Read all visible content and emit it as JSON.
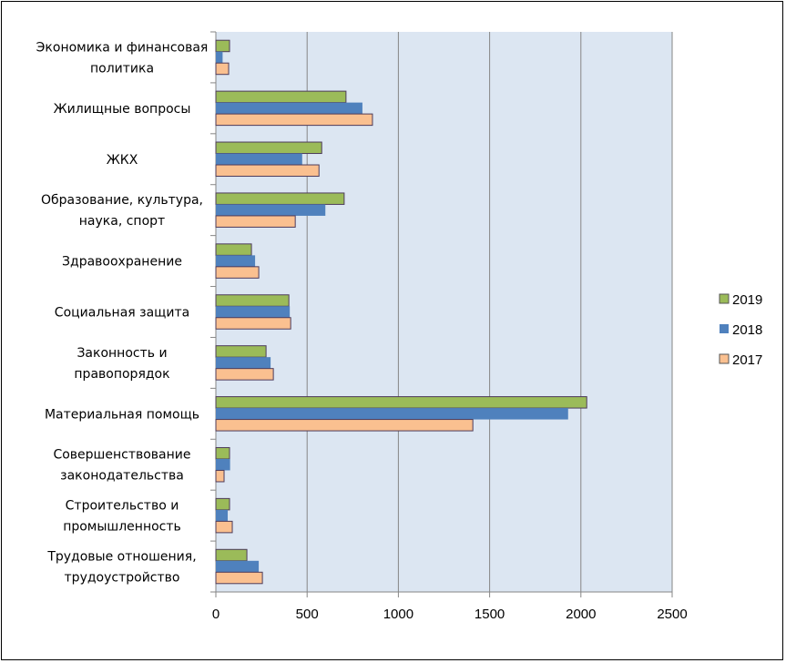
{
  "chart_data": {
    "type": "bar",
    "orientation": "horizontal",
    "title": "",
    "xlabel": "",
    "ylabel": "",
    "xlim": [
      0,
      2500
    ],
    "x_ticks": [
      "0",
      "500",
      "1000",
      "1500",
      "2000",
      "2500"
    ],
    "grid": true,
    "legend_position": "right",
    "categories": [
      [
        "Экономика и финансовая",
        "политика"
      ],
      [
        "Жилищные вопросы"
      ],
      [
        "ЖКХ"
      ],
      [
        "Образование, культура,",
        "наука, спорт"
      ],
      [
        "Здравоохранение"
      ],
      [
        "Социальная защита"
      ],
      [
        "Законность и",
        "правопорядок"
      ],
      [
        "Материальная помощь"
      ],
      [
        "Совершенствование",
        "законодательства"
      ],
      [
        "Строительство и",
        "промышленность"
      ],
      [
        "Трудовые отношения,",
        "трудоустройство"
      ]
    ],
    "series": [
      {
        "name": "2019",
        "color": "#9BBB59",
        "values": [
          75,
          713,
          580,
          703,
          195,
          400,
          275,
          2032,
          75,
          75,
          170
        ]
      },
      {
        "name": "2018",
        "color": "#4F81BD",
        "values": [
          37,
          803,
          473,
          600,
          215,
          405,
          300,
          1930,
          78,
          65,
          235
        ]
      },
      {
        "name": "2017",
        "color": "#FAC090",
        "values": [
          70,
          858,
          565,
          435,
          235,
          410,
          315,
          1408,
          45,
          90,
          255
        ]
      }
    ],
    "plot_background": "#DCE6F2"
  }
}
